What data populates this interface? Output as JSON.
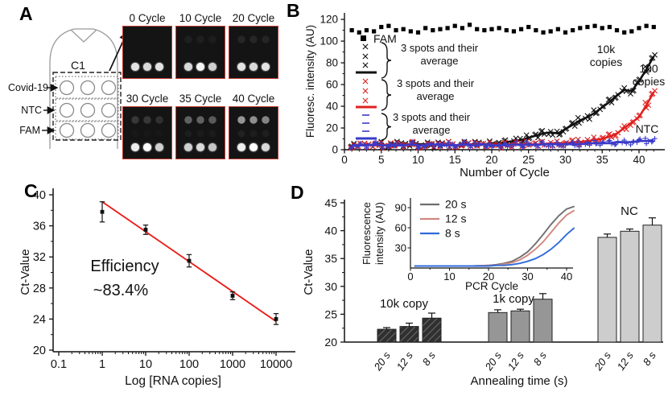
{
  "panels": {
    "a": {
      "label": "A",
      "chip": {
        "chamber_label": "C1",
        "rows": [
          "Covid-19",
          "NTC",
          "FAM"
        ]
      },
      "images": [
        {
          "label": "0 Cycle",
          "top_spots": [
            0.0,
            0.0,
            0.0
          ],
          "mid_spots": [
            0,
            0,
            0
          ],
          "bottom_spots": [
            0.85,
            0.8,
            0.85
          ]
        },
        {
          "label": "10 Cycle",
          "top_spots": [
            0.05,
            0.05,
            0.04
          ],
          "mid_spots": [
            0,
            0,
            0
          ],
          "bottom_spots": [
            0.8,
            0.95,
            0.75
          ]
        },
        {
          "label": "20 Cycle",
          "top_spots": [
            0.08,
            0.08,
            0.07
          ],
          "mid_spots": [
            0,
            0,
            0
          ],
          "bottom_spots": [
            0.85,
            0.8,
            0.85
          ]
        },
        {
          "label": "30 Cycle",
          "top_spots": [
            0.15,
            0.15,
            0.12
          ],
          "mid_spots": [
            0.02,
            0.02,
            0.02
          ],
          "bottom_spots": [
            0.9,
            1.0,
            0.75
          ]
        },
        {
          "label": "35 Cycle",
          "top_spots": [
            0.33,
            0.33,
            0.3
          ],
          "mid_spots": [
            0.04,
            0.03,
            0.03
          ],
          "bottom_spots": [
            0.75,
            0.8,
            0.7
          ]
        },
        {
          "label": "40 Cycle",
          "top_spots": [
            0.55,
            0.52,
            0.48
          ],
          "mid_spots": [
            0.06,
            0.04,
            0.05
          ],
          "bottom_spots": [
            0.9,
            1.0,
            0.8
          ]
        }
      ],
      "image_border_color": "#c23b33"
    },
    "b": {
      "label": "B"
    },
    "c": {
      "label": "C"
    },
    "d": {
      "label": "D"
    }
  },
  "chart_data": [
    {
      "panel": "B",
      "type": "scatter",
      "xlabel": "Number of Cycle",
      "ylabel": "Fluoresc. intensity (AU)",
      "xlim": [
        0,
        43.5
      ],
      "ylim": [
        0,
        126
      ],
      "xticks": [
        0,
        5,
        10,
        15,
        20,
        25,
        30,
        35,
        40
      ],
      "yticks": [
        0,
        20,
        40,
        60,
        80,
        100,
        120
      ],
      "x": [
        1,
        2,
        3,
        4,
        5,
        6,
        7,
        8,
        9,
        10,
        11,
        12,
        13,
        14,
        15,
        16,
        17,
        18,
        19,
        20,
        21,
        22,
        23,
        24,
        25,
        26,
        27,
        28,
        29,
        30,
        31,
        32,
        33,
        34,
        35,
        36,
        37,
        38,
        39,
        40,
        41,
        42
      ],
      "series": [
        {
          "name": "FAM",
          "marker": "square",
          "color": "#000000",
          "spots": 1,
          "values": [
            110,
            108,
            110,
            109,
            113,
            114,
            110,
            111,
            109,
            108,
            112,
            110,
            111,
            112,
            114,
            112,
            115,
            111,
            110,
            111,
            112,
            110,
            109,
            111,
            113,
            110,
            108,
            109,
            111,
            108,
            110,
            112,
            113,
            114,
            112,
            113,
            110,
            108,
            109,
            112,
            114,
            113
          ]
        },
        {
          "name": "10k copies",
          "marker": "x",
          "color": "#111111",
          "spots": 3,
          "line": true,
          "values": [
            5,
            4,
            5,
            4,
            5,
            4,
            5,
            5,
            4,
            5,
            5,
            4,
            5,
            5,
            4,
            5,
            5,
            5,
            5,
            6,
            6,
            7,
            8,
            9,
            11,
            13,
            15,
            16,
            15,
            19,
            23,
            27,
            30,
            34,
            39,
            44,
            50,
            55,
            54,
            63,
            74,
            86
          ]
        },
        {
          "name": "100 copies",
          "marker": "x",
          "color": "#e02020",
          "spots": 3,
          "line": true,
          "values": [
            4,
            4,
            5,
            4,
            4,
            5,
            4,
            4,
            5,
            4,
            4,
            5,
            4,
            5,
            4,
            4,
            5,
            4,
            5,
            5,
            4,
            5,
            5,
            5,
            5,
            5,
            5,
            6,
            6,
            6,
            7,
            7,
            8,
            9,
            10,
            12,
            15,
            20,
            25,
            30,
            41,
            53
          ]
        },
        {
          "name": "NTC",
          "marker": "plus",
          "color": "#3a3ac8",
          "spots": 3,
          "line": true,
          "values": [
            4,
            4,
            4,
            5,
            4,
            4,
            4,
            4,
            5,
            4,
            4,
            5,
            4,
            4,
            4,
            5,
            4,
            4,
            5,
            4,
            4,
            4,
            5,
            4,
            5,
            4,
            5,
            5,
            5,
            5,
            5,
            5,
            6,
            6,
            6,
            6,
            7,
            7,
            7,
            8,
            8,
            9
          ]
        }
      ],
      "legend": [
        {
          "marker": "square",
          "color": "#000000",
          "label": "FAM"
        },
        {
          "marker": "x3",
          "color": "#111111",
          "label_lines": [
            "3 spots and their",
            "average"
          ]
        },
        {
          "marker": "x3",
          "color": "#e02020",
          "label_lines": [
            "3 spots and their",
            "average"
          ]
        },
        {
          "marker": "dash3",
          "color": "#3a3ac8",
          "label_lines": [
            "3 spots and their",
            "average"
          ]
        }
      ],
      "annotations": [
        {
          "id": "10k",
          "lines": [
            "10k",
            "copies"
          ]
        },
        {
          "id": "100",
          "lines": [
            "100",
            "copies"
          ]
        },
        {
          "id": "ntc",
          "lines": [
            "NTC"
          ]
        }
      ]
    },
    {
      "panel": "C",
      "type": "scatter",
      "xlabel": "Log [RNA copies]",
      "ylabel": "Ct-Value",
      "xscale": "log",
      "xticks": [
        0.1,
        1,
        10,
        100,
        1000,
        10000
      ],
      "ylim": [
        20,
        41
      ],
      "yticks": [
        20,
        24,
        28,
        32,
        36,
        40
      ],
      "annotation_lines": [
        "Efficiency",
        "~83.4%"
      ],
      "points": {
        "x": [
          1,
          10,
          100,
          1000,
          10000
        ],
        "y": [
          37.8,
          35.5,
          31.5,
          27.0,
          24.0
        ],
        "yerr": [
          1.3,
          0.6,
          0.8,
          0.5,
          0.7
        ]
      },
      "fit_line": {
        "x": [
          1,
          10000
        ],
        "y": [
          39.1,
          23.7
        ],
        "color": "#e8211d"
      }
    },
    {
      "panel": "D",
      "type": "bar",
      "xlabel": "Annealing time (s)",
      "ylabel": "Ct-Value",
      "ylim": [
        20,
        45
      ],
      "yticks": [
        20,
        25,
        30,
        35,
        40,
        45
      ],
      "groups": [
        {
          "name": "10k copy",
          "style": "dark-hatch",
          "fill": "#303030",
          "bars": [
            {
              "label": "20 s",
              "value": 22.3,
              "err": 0.3
            },
            {
              "label": "12 s",
              "value": 22.8,
              "err": 0.6
            },
            {
              "label": "8 s",
              "value": 24.3,
              "err": 0.9
            }
          ]
        },
        {
          "name": "1k copy",
          "style": "gray",
          "fill": "#969696",
          "bars": [
            {
              "label": "20 s",
              "value": 25.3,
              "err": 0.5
            },
            {
              "label": "12 s",
              "value": 25.6,
              "err": 0.3
            },
            {
              "label": "8 s",
              "value": 27.7,
              "err": 1.0
            }
          ]
        },
        {
          "name": "NC",
          "style": "light",
          "fill": "#cdcdcd",
          "bars": [
            {
              "label": "20 s",
              "value": 38.8,
              "err": 0.6
            },
            {
              "label": "12 s",
              "value": 39.9,
              "err": 0.4
            },
            {
              "label": "8 s",
              "value": 41.0,
              "err": 1.3
            }
          ]
        }
      ]
    },
    {
      "panel": "D-inset",
      "type": "line",
      "xlabel": "PCR Cycle",
      "ylabel_lines": [
        "Fluorescence",
        "intensity (AU)"
      ],
      "xlim": [
        0,
        42
      ],
      "ylim": [
        0,
        100
      ],
      "xticks": [
        0,
        10,
        20,
        30,
        40
      ],
      "yticks": [
        30,
        60,
        90
      ],
      "x": [
        1,
        4,
        8,
        12,
        16,
        20,
        22,
        24,
        26,
        28,
        30,
        32,
        34,
        36,
        38,
        40,
        42
      ],
      "series": [
        {
          "name": "20 s",
          "color": "#6e6e6e",
          "values": [
            3,
            3,
            3,
            3,
            3,
            4,
            5,
            7,
            10,
            16,
            24,
            36,
            50,
            65,
            78,
            88,
            92
          ]
        },
        {
          "name": "12 s",
          "color": "#d08880",
          "values": [
            3,
            3,
            3,
            3,
            3,
            4,
            4,
            6,
            8,
            12,
            19,
            28,
            39,
            53,
            67,
            79,
            86
          ]
        },
        {
          "name": "8 s",
          "color": "#2f6bdb",
          "values": [
            3,
            3,
            3,
            3,
            3,
            3,
            4,
            4,
            5,
            7,
            10,
            14,
            20,
            28,
            38,
            50,
            60
          ]
        }
      ],
      "legend_position": "top-left"
    }
  ]
}
